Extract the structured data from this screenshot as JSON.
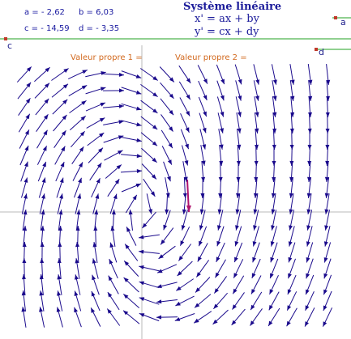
{
  "parameters": {
    "a": "a = - 2,62",
    "b": "b = 6,03",
    "c": "c = - 14,59",
    "d": "d = - 3,35"
  },
  "coefficients": {
    "a": -2.62,
    "b": 6.03,
    "c": -14.59,
    "d": -3.35
  },
  "title": "Système linéaire",
  "equations": {
    "line1": "x' = ax + by",
    "line2": "y' = cx + dy"
  },
  "eigenvalues": {
    "label1": "Valeur propre 1 =",
    "label2": "Valeur propre 2 ="
  },
  "sliders": {
    "c_label": "c",
    "a_label": "a",
    "d_label": "d"
  },
  "colors": {
    "arrow": "#1a0a8c",
    "trajectory": "#b0136e",
    "slider_line": "#22a022",
    "slider_handle": "#c0392b",
    "axis": "#b8b8b8"
  }
}
